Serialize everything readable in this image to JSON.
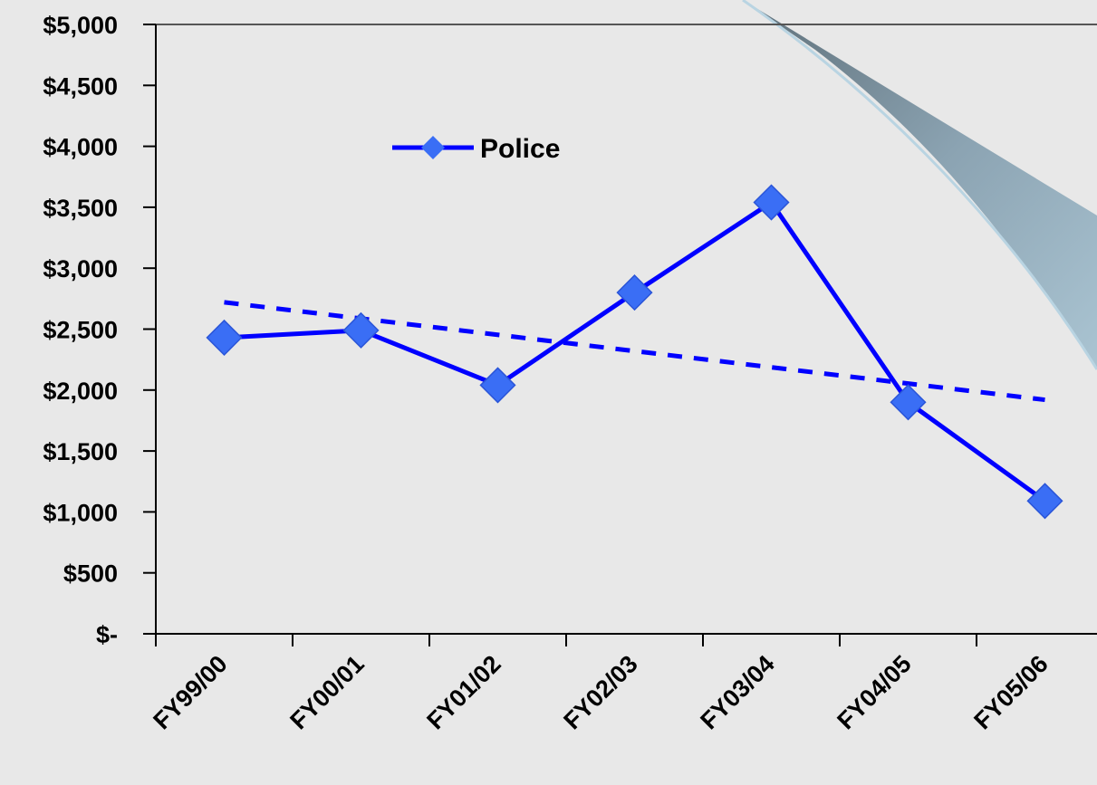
{
  "chart_data": {
    "type": "line",
    "categories": [
      "FY99/00",
      "FY00/01",
      "FY01/02",
      "FY02/03",
      "FY03/04",
      "FY04/05",
      "FY05/06"
    ],
    "series": [
      {
        "name": "Police",
        "values": [
          2430,
          2490,
          2040,
          2800,
          3540,
          1900,
          1090
        ],
        "color": "#0000ff",
        "marker_color": "#3a6ef5",
        "marker": "diamond"
      }
    ],
    "trendline": {
      "style": "dashed",
      "color": "#0000ff",
      "start": 2720,
      "end": 1920
    },
    "y_ticks": [
      "$-",
      "$500",
      "$1,000",
      "$1,500",
      "$2,000",
      "$2,500",
      "$3,000",
      "$3,500",
      "$4,000",
      "$4,500",
      "$5,000"
    ],
    "ylim": [
      0,
      5000
    ],
    "grid": false,
    "legend": {
      "position": "top-left",
      "label": "Police"
    },
    "title": "",
    "xlabel": "",
    "ylabel": "",
    "colors": {
      "background": "#e8e8e8",
      "axis": "#000000",
      "decoration": "#7d97a6"
    }
  }
}
